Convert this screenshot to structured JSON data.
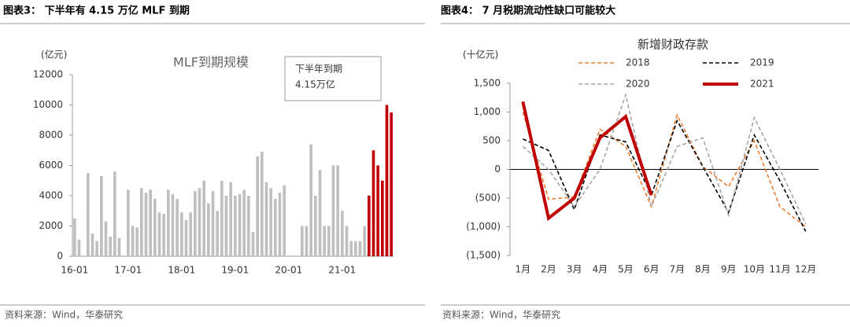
{
  "chart_data": [
    {
      "type": "bar",
      "heading": "图表3： 下半年有 4.15 万亿 MLF 到期",
      "title": "MLF到期规模",
      "y_label": "(亿元)",
      "annotation": [
        "下半年到期",
        "4.15万亿"
      ],
      "source": "资料来源：Wind，华泰研究",
      "categories": [
        "16-01",
        null,
        null,
        null,
        null,
        null,
        null,
        null,
        null,
        null,
        null,
        null,
        "17-01",
        null,
        null,
        null,
        null,
        null,
        null,
        null,
        null,
        null,
        null,
        null,
        "18-01",
        null,
        null,
        null,
        null,
        null,
        null,
        null,
        null,
        null,
        null,
        null,
        "19-01",
        null,
        null,
        null,
        null,
        null,
        null,
        null,
        null,
        null,
        null,
        null,
        "20-01",
        null,
        null,
        null,
        null,
        null,
        null,
        null,
        null,
        null,
        null,
        null,
        "21-01",
        null,
        null,
        null,
        null,
        null,
        null,
        null,
        null,
        null,
        null,
        null
      ],
      "values": [
        2500,
        1100,
        0,
        5500,
        1500,
        1000,
        5300,
        2300,
        1300,
        5600,
        1200,
        0,
        4400,
        2000,
        1900,
        4500,
        4200,
        4400,
        3800,
        2900,
        2800,
        4400,
        4100,
        3800,
        2900,
        2400,
        2900,
        4300,
        4500,
        5000,
        3500,
        4300,
        3000,
        5000,
        4000,
        4900,
        4000,
        4100,
        4400,
        4000,
        1600,
        6600,
        6900,
        4900,
        4500,
        3800,
        4200,
        4700,
        0,
        0,
        0,
        2000,
        2000,
        7400,
        4000,
        5700,
        2000,
        2000,
        6000,
        6000,
        3000,
        2000,
        1000,
        1000,
        1000,
        2000,
        4000,
        7000,
        6000,
        5000,
        10000,
        9500
      ],
      "colors": [
        "#bfbfbf",
        "#bfbfbf",
        "#bfbfbf",
        "#bfbfbf",
        "#bfbfbf",
        "#bfbfbf",
        "#bfbfbf",
        "#bfbfbf",
        "#bfbfbf",
        "#bfbfbf",
        "#bfbfbf",
        "#bfbfbf",
        "#bfbfbf",
        "#bfbfbf",
        "#bfbfbf",
        "#bfbfbf",
        "#bfbfbf",
        "#bfbfbf",
        "#bfbfbf",
        "#bfbfbf",
        "#bfbfbf",
        "#bfbfbf",
        "#bfbfbf",
        "#bfbfbf",
        "#bfbfbf",
        "#bfbfbf",
        "#bfbfbf",
        "#bfbfbf",
        "#bfbfbf",
        "#bfbfbf",
        "#bfbfbf",
        "#bfbfbf",
        "#bfbfbf",
        "#bfbfbf",
        "#bfbfbf",
        "#bfbfbf",
        "#bfbfbf",
        "#bfbfbf",
        "#bfbfbf",
        "#bfbfbf",
        "#bfbfbf",
        "#bfbfbf",
        "#bfbfbf",
        "#bfbfbf",
        "#bfbfbf",
        "#bfbfbf",
        "#bfbfbf",
        "#bfbfbf",
        "#bfbfbf",
        "#bfbfbf",
        "#bfbfbf",
        "#bfbfbf",
        "#bfbfbf",
        "#bfbfbf",
        "#bfbfbf",
        "#bfbfbf",
        "#bfbfbf",
        "#bfbfbf",
        "#bfbfbf",
        "#bfbfbf",
        "#bfbfbf",
        "#bfbfbf",
        "#bfbfbf",
        "#bfbfbf",
        "#bfbfbf",
        "#bfbfbf",
        "#c00000",
        "#c00000",
        "#c00000",
        "#c00000",
        "#c00000",
        "#c00000"
      ],
      "ylim": [
        0,
        12000
      ],
      "yticks": [
        0,
        2000,
        4000,
        6000,
        8000,
        10000,
        12000
      ]
    },
    {
      "type": "line",
      "heading": "图表4： 7 月税期流动性缺口可能较大",
      "title": "新增财政存款",
      "y_label": "(十亿元)",
      "source": "资料来源：Wind，华泰研究",
      "categories": [
        "1月",
        "2月",
        "3月",
        "4月",
        "5月",
        "6月",
        "7月",
        "8月",
        "9月",
        "10月",
        "11月",
        "12月"
      ],
      "series": [
        {
          "name": "2018",
          "color": "#ed7d31",
          "style": "dashed",
          "values": [
            1000,
            -520,
            -480,
            700,
            400,
            -650,
            950,
            50,
            -300,
            500,
            -650,
            -1000
          ]
        },
        {
          "name": "2019",
          "color": "#000000",
          "style": "dashed",
          "values": [
            530,
            330,
            -700,
            600,
            480,
            -450,
            850,
            50,
            -750,
            600,
            -200,
            -1080
          ]
        },
        {
          "name": "2020",
          "color": "#a6a6a6",
          "style": "dashed",
          "values": [
            400,
            0,
            -650,
            0,
            1300,
            -650,
            400,
            550,
            -800,
            900,
            0,
            -950
          ]
        },
        {
          "name": "2021",
          "color": "#c00000",
          "style": "solid",
          "values": [
            1180,
            -850,
            -500,
            550,
            920,
            -450,
            null,
            null,
            null,
            null,
            null,
            null
          ]
        }
      ],
      "ylim": [
        -1500,
        1500
      ],
      "yticks": [
        {
          "value": -1500,
          "label": "(1,500)"
        },
        {
          "value": -1000,
          "label": "(1,000)"
        },
        {
          "value": -500,
          "label": "(500)"
        },
        0,
        500,
        {
          "value": 1000,
          "label": "1,000"
        },
        {
          "value": 1500,
          "label": "1,500"
        }
      ]
    }
  ]
}
